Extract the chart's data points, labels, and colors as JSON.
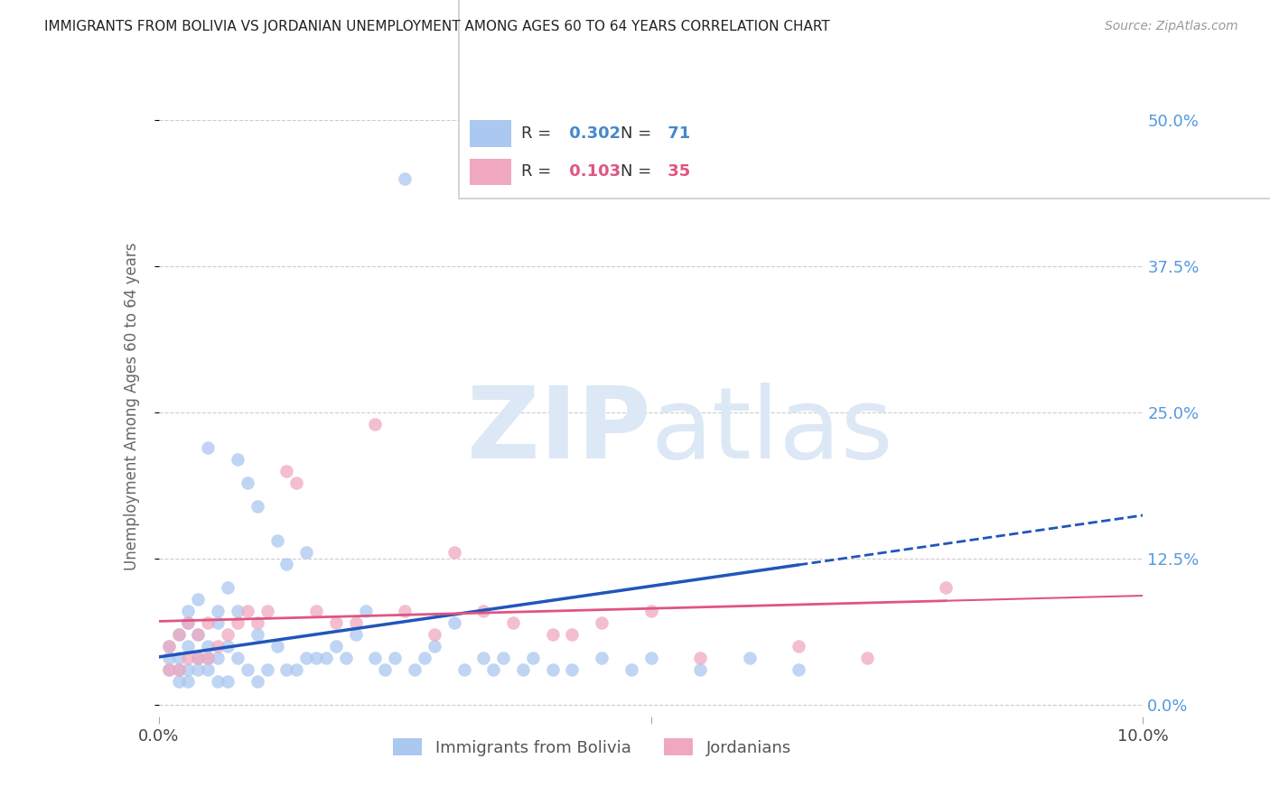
{
  "title": "IMMIGRANTS FROM BOLIVIA VS JORDANIAN UNEMPLOYMENT AMONG AGES 60 TO 64 YEARS CORRELATION CHART",
  "source": "Source: ZipAtlas.com",
  "ylabel": "Unemployment Among Ages 60 to 64 years",
  "xlim": [
    0.0,
    0.1
  ],
  "ylim": [
    -0.01,
    0.52
  ],
  "yticks_right": [
    0.0,
    0.125,
    0.25,
    0.375,
    0.5
  ],
  "ytick_labels_right": [
    "0.0%",
    "12.5%",
    "25.0%",
    "37.5%",
    "50.0%"
  ],
  "bolivia_color": "#aac8f0",
  "jordan_color": "#f0a8c0",
  "bolivia_line_color": "#2255bb",
  "jordan_line_color": "#e05580",
  "bolivia_R": 0.302,
  "bolivia_N": 71,
  "jordan_R": 0.103,
  "jordan_N": 35,
  "bolivia_scatter_x": [
    0.001,
    0.001,
    0.001,
    0.002,
    0.002,
    0.002,
    0.002,
    0.003,
    0.003,
    0.003,
    0.003,
    0.003,
    0.004,
    0.004,
    0.004,
    0.004,
    0.005,
    0.005,
    0.005,
    0.005,
    0.006,
    0.006,
    0.006,
    0.006,
    0.007,
    0.007,
    0.007,
    0.008,
    0.008,
    0.008,
    0.009,
    0.009,
    0.01,
    0.01,
    0.01,
    0.011,
    0.012,
    0.012,
    0.013,
    0.013,
    0.014,
    0.015,
    0.015,
    0.016,
    0.017,
    0.018,
    0.019,
    0.02,
    0.021,
    0.022,
    0.023,
    0.024,
    0.025,
    0.026,
    0.027,
    0.028,
    0.03,
    0.031,
    0.033,
    0.034,
    0.035,
    0.037,
    0.038,
    0.04,
    0.042,
    0.045,
    0.048,
    0.05,
    0.055,
    0.06,
    0.065
  ],
  "bolivia_scatter_y": [
    0.03,
    0.04,
    0.05,
    0.02,
    0.03,
    0.04,
    0.06,
    0.02,
    0.03,
    0.05,
    0.07,
    0.08,
    0.03,
    0.04,
    0.06,
    0.09,
    0.03,
    0.04,
    0.05,
    0.22,
    0.02,
    0.04,
    0.07,
    0.08,
    0.02,
    0.05,
    0.1,
    0.04,
    0.08,
    0.21,
    0.03,
    0.19,
    0.02,
    0.06,
    0.17,
    0.03,
    0.05,
    0.14,
    0.03,
    0.12,
    0.03,
    0.04,
    0.13,
    0.04,
    0.04,
    0.05,
    0.04,
    0.06,
    0.08,
    0.04,
    0.03,
    0.04,
    0.45,
    0.03,
    0.04,
    0.05,
    0.07,
    0.03,
    0.04,
    0.03,
    0.04,
    0.03,
    0.04,
    0.03,
    0.03,
    0.04,
    0.03,
    0.04,
    0.03,
    0.04,
    0.03
  ],
  "jordan_scatter_x": [
    0.001,
    0.001,
    0.002,
    0.002,
    0.003,
    0.003,
    0.004,
    0.004,
    0.005,
    0.005,
    0.006,
    0.007,
    0.008,
    0.009,
    0.01,
    0.011,
    0.013,
    0.014,
    0.016,
    0.018,
    0.02,
    0.022,
    0.025,
    0.028,
    0.03,
    0.033,
    0.036,
    0.04,
    0.042,
    0.045,
    0.05,
    0.055,
    0.065,
    0.072,
    0.08
  ],
  "jordan_scatter_y": [
    0.03,
    0.05,
    0.03,
    0.06,
    0.04,
    0.07,
    0.04,
    0.06,
    0.04,
    0.07,
    0.05,
    0.06,
    0.07,
    0.08,
    0.07,
    0.08,
    0.2,
    0.19,
    0.08,
    0.07,
    0.07,
    0.24,
    0.08,
    0.06,
    0.13,
    0.08,
    0.07,
    0.06,
    0.06,
    0.07,
    0.08,
    0.04,
    0.05,
    0.04,
    0.1
  ],
  "watermark_zip": "ZIP",
  "watermark_atlas": "atlas",
  "background_color": "#ffffff",
  "grid_color": "#cccccc"
}
